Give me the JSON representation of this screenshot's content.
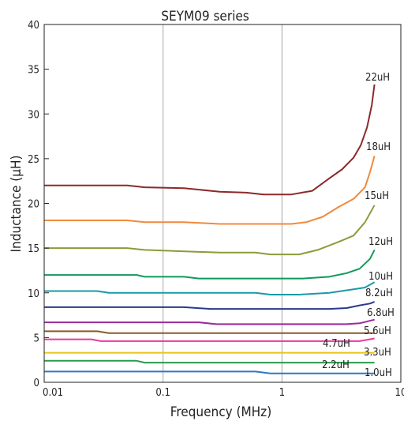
{
  "chart_data": {
    "type": "line",
    "title": "SEYM09 series",
    "xlabel": "Frequency (MHz)",
    "ylabel": "Inductance (μH)",
    "x_scale": "log",
    "xlim": [
      0.01,
      10
    ],
    "ylim": [
      0,
      40
    ],
    "x_ticks": [
      {
        "value": 0.01,
        "label": "0.01"
      },
      {
        "value": 0.1,
        "label": "0.1"
      },
      {
        "value": 1,
        "label": "1"
      },
      {
        "value": 10,
        "label": "10"
      }
    ],
    "y_ticks": [
      {
        "value": 0,
        "label": "0"
      },
      {
        "value": 5,
        "label": "5"
      },
      {
        "value": 10,
        "label": "10"
      },
      {
        "value": 15,
        "label": "15"
      },
      {
        "value": 20,
        "label": "20"
      },
      {
        "value": 25,
        "label": "25"
      },
      {
        "value": 30,
        "label": "30"
      },
      {
        "value": 35,
        "label": "35"
      },
      {
        "value": 40,
        "label": "40"
      }
    ],
    "grid": true,
    "series": [
      {
        "name": "22uH",
        "color": "#8b2a2a",
        "x": [
          0.01,
          0.02,
          0.05,
          0.07,
          0.15,
          0.3,
          0.5,
          0.7,
          1.2,
          1.8,
          2.5,
          3.2,
          4,
          4.6,
          5.2,
          5.7,
          6
        ],
        "y": [
          22,
          22,
          22,
          21.8,
          21.7,
          21.3,
          21.2,
          21,
          21,
          21.4,
          22.8,
          23.8,
          25.1,
          26.5,
          28.5,
          31,
          33.3
        ]
      },
      {
        "name": "18uH",
        "color": "#f08a3c",
        "x": [
          0.01,
          0.05,
          0.07,
          0.15,
          0.3,
          0.7,
          1.2,
          1.6,
          2.2,
          3,
          4,
          5,
          5.5,
          6
        ],
        "y": [
          18.1,
          18.1,
          17.9,
          17.9,
          17.7,
          17.7,
          17.7,
          17.9,
          18.5,
          19.6,
          20.5,
          21.8,
          23.5,
          25.3
        ]
      },
      {
        "name": "15uH",
        "color": "#8f9a3a",
        "x": [
          0.01,
          0.05,
          0.07,
          0.3,
          0.6,
          0.8,
          1.4,
          2,
          3,
          4,
          5,
          6
        ],
        "y": [
          15,
          15,
          14.8,
          14.5,
          14.5,
          14.3,
          14.3,
          14.8,
          15.7,
          16.4,
          17.9,
          19.8
        ]
      },
      {
        "name": "12uH",
        "color": "#109a5a",
        "x": [
          0.01,
          0.06,
          0.07,
          0.15,
          0.2,
          0.7,
          1.5,
          2.5,
          3.5,
          4.5,
          5.5,
          6
        ],
        "y": [
          12,
          12,
          11.8,
          11.8,
          11.6,
          11.6,
          11.6,
          11.8,
          12.2,
          12.7,
          13.8,
          14.8
        ]
      },
      {
        "name": "10uH",
        "color": "#1a9aa6",
        "x": [
          0.01,
          0.028,
          0.035,
          0.6,
          0.8,
          1.4,
          2.5,
          4,
          5,
          6
        ],
        "y": [
          10.2,
          10.2,
          10,
          10,
          9.8,
          9.8,
          10,
          10.4,
          10.6,
          11.2
        ]
      },
      {
        "name": "8.2uH",
        "color": "#2a3a8a",
        "x": [
          0.01,
          0.15,
          0.25,
          2.5,
          3.5,
          4.5,
          5.5,
          6
        ],
        "y": [
          8.4,
          8.4,
          8.2,
          8.2,
          8.3,
          8.6,
          8.8,
          9
        ]
      },
      {
        "name": "6.8uH",
        "color": "#9a2a9a",
        "x": [
          0.01,
          0.2,
          0.28,
          3.5,
          4.5,
          6
        ],
        "y": [
          6.7,
          6.7,
          6.5,
          6.5,
          6.6,
          7
        ]
      },
      {
        "name": "5.6uH",
        "color": "#8a5a2a",
        "x": [
          0.01,
          0.028,
          0.035,
          3,
          4,
          6
        ],
        "y": [
          5.7,
          5.7,
          5.5,
          5.5,
          5.5,
          5.5
        ]
      },
      {
        "name": "4.7uH",
        "color": "#e83aa0",
        "x": [
          0.01,
          0.025,
          0.03,
          3,
          4.5,
          6
        ],
        "y": [
          4.8,
          4.8,
          4.6,
          4.6,
          4.6,
          4.9
        ]
      },
      {
        "name": "3.3uH",
        "color": "#e8c41a",
        "x": [
          0.01,
          1,
          6
        ],
        "y": [
          3.3,
          3.3,
          3.3
        ]
      },
      {
        "name": "2.2uH",
        "color": "#2a9a4a",
        "x": [
          0.01,
          0.06,
          0.07,
          1,
          3,
          6
        ],
        "y": [
          2.4,
          2.4,
          2.2,
          2.2,
          2.2,
          2.2
        ]
      },
      {
        "name": "1.0uH",
        "color": "#2a7ac4",
        "x": [
          0.01,
          0.6,
          0.8,
          3,
          6
        ],
        "y": [
          1.2,
          1.2,
          1.0,
          1.0,
          1.0
        ]
      }
    ]
  }
}
